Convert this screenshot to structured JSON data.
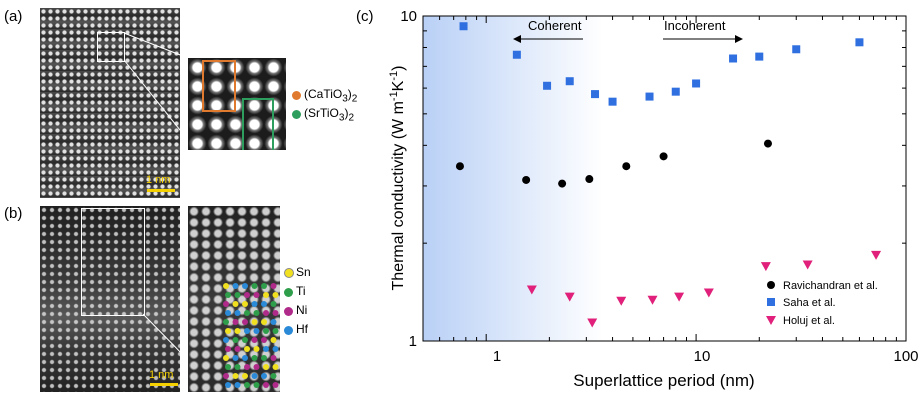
{
  "panel_a": {
    "label": "(a)",
    "scale_bar": "1 nm",
    "legend": [
      {
        "text": "(CaTiO3)2",
        "formula": "CaTiO",
        "sub1": "3",
        "sub2": "2",
        "color": "#e07a2e"
      },
      {
        "text": "(SrTiO3)2",
        "formula": "SrTiO",
        "sub1": "3",
        "sub2": "2",
        "color": "#2e9e5e"
      }
    ]
  },
  "panel_b": {
    "label": "(b)",
    "scale_bar": "1 nm",
    "legend": [
      {
        "text": "Sn",
        "color": "#f0e020"
      },
      {
        "text": "Ti",
        "color": "#2e9e4a"
      },
      {
        "text": "Ni",
        "color": "#b02a8a"
      },
      {
        "text": "Hf",
        "color": "#2a8ad8"
      }
    ]
  },
  "panel_c": {
    "label": "(c)",
    "arrow_left": "Coherent",
    "arrow_right": "Incoherent",
    "x_ticks": [
      "1",
      "10",
      "100"
    ],
    "y_ticks": [
      "1",
      "10"
    ]
  },
  "chart_data": {
    "type": "scatter",
    "xlabel": "Superlattice period (nm)",
    "ylabel": "Thermal conductivity (W m-1K-1)",
    "ylabel_main": "Thermal conductivity (W m",
    "ylabel_sup1": "-1",
    "ylabel_mid": "K",
    "ylabel_sup2": "-1",
    "ylabel_end": ")",
    "xscale": "log",
    "yscale": "log",
    "xlim": [
      0.5,
      100
    ],
    "ylim": [
      1,
      10
    ],
    "legend_position": "bottom-right",
    "series": [
      {
        "name": "Ravichandran et al.",
        "marker": "circle",
        "color": "#000000",
        "x": [
          0.75,
          1.55,
          2.3,
          3.1,
          4.65,
          7.0,
          22.0
        ],
        "y": [
          3.45,
          3.13,
          3.05,
          3.15,
          3.45,
          3.7,
          4.05
        ]
      },
      {
        "name": "Saha et al.",
        "marker": "square",
        "color": "#2f6fe0",
        "x": [
          0.78,
          1.4,
          1.95,
          2.5,
          3.3,
          4.0,
          6.0,
          8.0,
          10.0,
          15.0,
          20.0,
          30.0,
          60.0
        ],
        "y": [
          9.3,
          7.6,
          6.1,
          6.3,
          5.75,
          5.45,
          5.65,
          5.85,
          6.2,
          7.4,
          7.5,
          7.9,
          8.3
        ]
      },
      {
        "name": "Holuj et al.",
        "marker": "triangle-down",
        "color": "#e0207a",
        "x": [
          1.65,
          2.5,
          3.2,
          4.4,
          6.2,
          8.3,
          11.5,
          21.5,
          34.0,
          72.0
        ],
        "y": [
          1.44,
          1.37,
          1.14,
          1.33,
          1.34,
          1.37,
          1.41,
          1.7,
          1.72,
          1.84
        ]
      }
    ]
  }
}
